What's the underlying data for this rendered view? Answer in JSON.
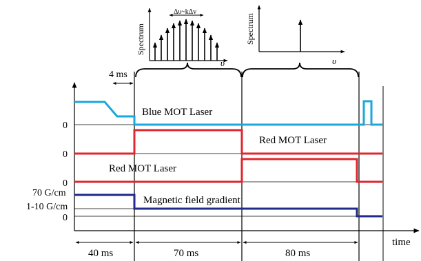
{
  "spectrum_insets": {
    "left_axis_label": "Spectrum",
    "left_freq_label": "υ",
    "left_width_label": "Δυ~kΔv",
    "right_axis_label": "Spectrum",
    "right_freq_label": "υ"
  },
  "annotations": {
    "delay": "4 ms"
  },
  "traces": {
    "blue_mot": {
      "label": "Blue MOT Laser",
      "color": "#1aa7dc"
    },
    "red_mot_upper": {
      "label": "Red MOT Laser",
      "color": "#e0262e"
    },
    "red_mot_lower": {
      "label": "Red MOT Laser",
      "color": "#e0262e"
    },
    "magnetic": {
      "label": "Magnetic field gradient",
      "color": "#1f2a8a"
    }
  },
  "y_axis": {
    "zero_1": "0",
    "zero_2": "0",
    "zero_3": "0",
    "zero_4": "0",
    "field_high": "70 G/cm",
    "field_low": "1-10 G/cm"
  },
  "x_axis": {
    "label": "time",
    "durations": [
      "40 ms",
      "70 ms",
      "80 ms"
    ]
  }
}
